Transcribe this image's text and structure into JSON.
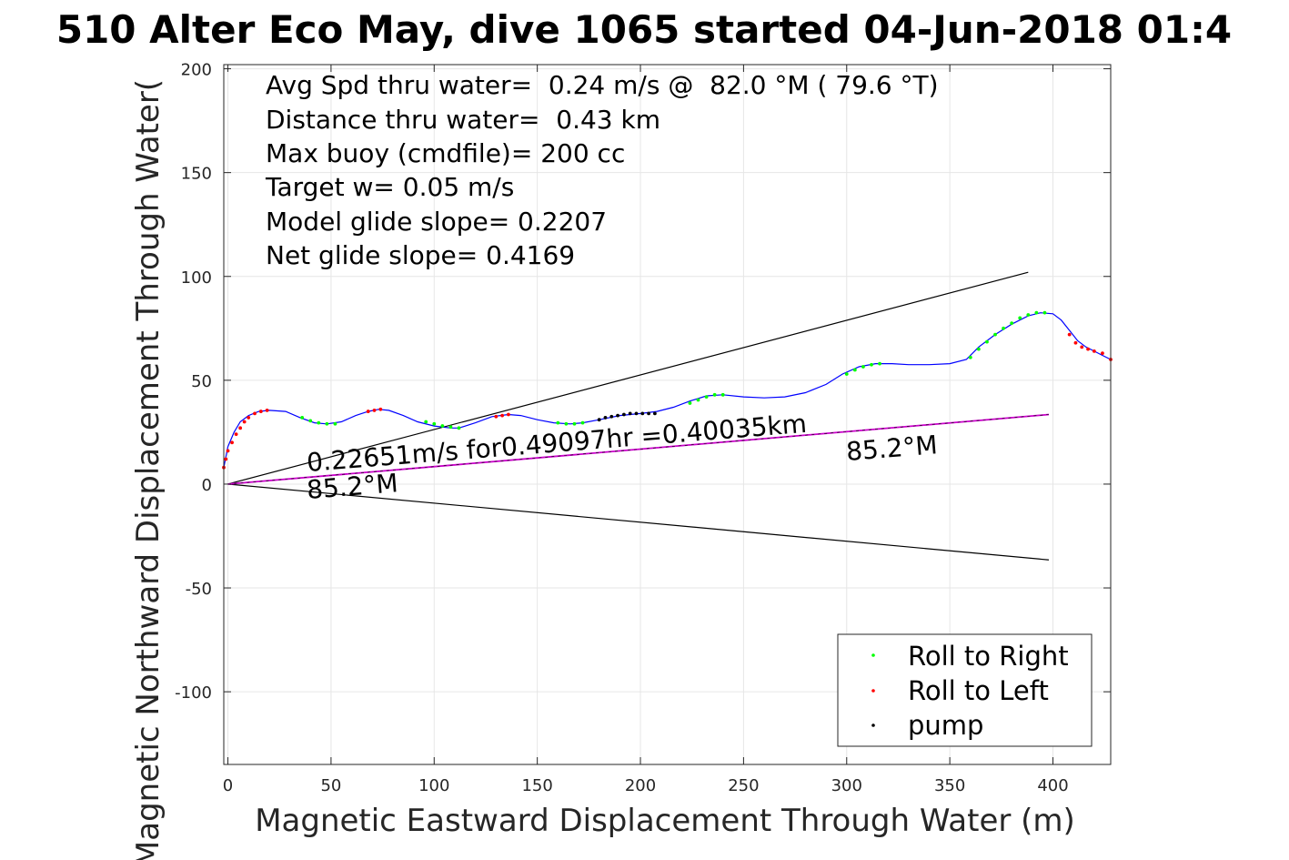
{
  "chart_data": {
    "type": "scatter",
    "title": "510 Alter Eco May, dive 1065 started 04-Jun-2018 01:4",
    "xlabel": "Magnetic Eastward Displacement Through Water (m)",
    "ylabel": "Magnetic Northward Displacement Through Water(",
    "xlim": [
      -2,
      428
    ],
    "ylim": [
      -135,
      202
    ],
    "xticks": [
      0,
      50,
      100,
      150,
      200,
      250,
      300,
      350,
      400
    ],
    "yticks": [
      200,
      150,
      100,
      50,
      0,
      -50,
      -100
    ],
    "grid": true,
    "info_lines": [
      "Avg Spd thru water=  0.24 m/s @  82.0 °M ( 79.6 °T)",
      "Distance thru water=  0.43 km",
      "Max buoy (cmdfile)= 200 cc",
      "Target w= 0.05 m/s",
      "Model glide slope= 0.2207",
      "Net glide slope= 0.4169"
    ],
    "annotations": {
      "speed_text": "0.22651m/s for0.49097hr =0.40035km",
      "heading_start": "85.2°M",
      "heading_end": "85.2°M"
    },
    "track": {
      "color": "#0000ff",
      "x": [
        -2,
        0,
        3,
        6,
        10,
        15,
        20,
        28,
        35,
        42,
        48,
        55,
        62,
        68,
        73,
        78,
        85,
        92,
        100,
        108,
        112,
        120,
        128,
        136,
        142,
        150,
        158,
        166,
        172,
        180,
        190,
        200,
        208,
        216,
        224,
        232,
        240,
        250,
        260,
        270,
        280,
        290,
        298,
        306,
        314,
        322,
        330,
        340,
        350,
        358,
        364,
        372,
        380,
        388,
        394,
        400,
        404,
        408,
        412,
        416,
        420,
        424,
        428
      ],
      "y": [
        8,
        18,
        25,
        30,
        33,
        35,
        35.5,
        35,
        32,
        29.5,
        29,
        30,
        33,
        35,
        36,
        35.5,
        33,
        30,
        28,
        27,
        27,
        29.5,
        32.5,
        33.5,
        33,
        31,
        29.5,
        29,
        29.5,
        31,
        33,
        34,
        35,
        37,
        40,
        42.5,
        43,
        42,
        41.5,
        42,
        44,
        48,
        53,
        56.5,
        58,
        58,
        57.5,
        57.5,
        58,
        60,
        66,
        72,
        77,
        81,
        82.5,
        82,
        79,
        74,
        69,
        66,
        64,
        62,
        60
      ]
    },
    "bounds": {
      "color": "#000000",
      "upper": {
        "x": [
          0,
          388
        ],
        "y": [
          0,
          102
        ]
      },
      "lower": {
        "x": [
          0,
          398
        ],
        "y": [
          0,
          -36.5
        ]
      }
    },
    "net_line": {
      "color": "#cc00cc",
      "x": [
        0,
        398
      ],
      "y": [
        0,
        33.5
      ]
    },
    "series": [
      {
        "name": "Roll to Right",
        "color": "#00ff00",
        "x": [
          36,
          40,
          44,
          48,
          52,
          96,
          100,
          104,
          108,
          112,
          160,
          164,
          168,
          172,
          224,
          228,
          232,
          236,
          240,
          300,
          304,
          308,
          312,
          316,
          360,
          364,
          368,
          372,
          376,
          380,
          384,
          388,
          392,
          396
        ],
        "y": [
          32,
          30.5,
          29.5,
          29,
          29,
          30,
          29,
          28,
          27.5,
          27,
          29.5,
          29,
          29,
          29.5,
          39,
          40.5,
          42,
          43,
          43,
          53,
          55,
          56.5,
          57.5,
          58,
          61,
          65,
          68.5,
          72,
          75,
          77.5,
          80,
          81.5,
          82.5,
          82.5
        ]
      },
      {
        "name": "Roll to Left",
        "color": "#ff0000",
        "x": [
          -2,
          -1,
          0,
          2,
          4,
          6,
          8,
          10,
          13,
          16,
          19,
          68,
          71,
          74,
          130,
          133,
          136,
          408,
          411,
          414,
          417,
          420,
          424,
          428
        ],
        "y": [
          8,
          12,
          16,
          20,
          24,
          27,
          30,
          32,
          34,
          35,
          35.5,
          35,
          35.5,
          36,
          32.5,
          33,
          33.5,
          72,
          68,
          66,
          65,
          64,
          63,
          60
        ]
      },
      {
        "name": "pump",
        "color": "#000000",
        "x": [
          180,
          183,
          186,
          189,
          192,
          195,
          198,
          201,
          204,
          207
        ],
        "y": [
          31,
          32,
          32.5,
          33,
          33.5,
          34,
          34,
          34,
          34,
          34
        ]
      }
    ]
  }
}
